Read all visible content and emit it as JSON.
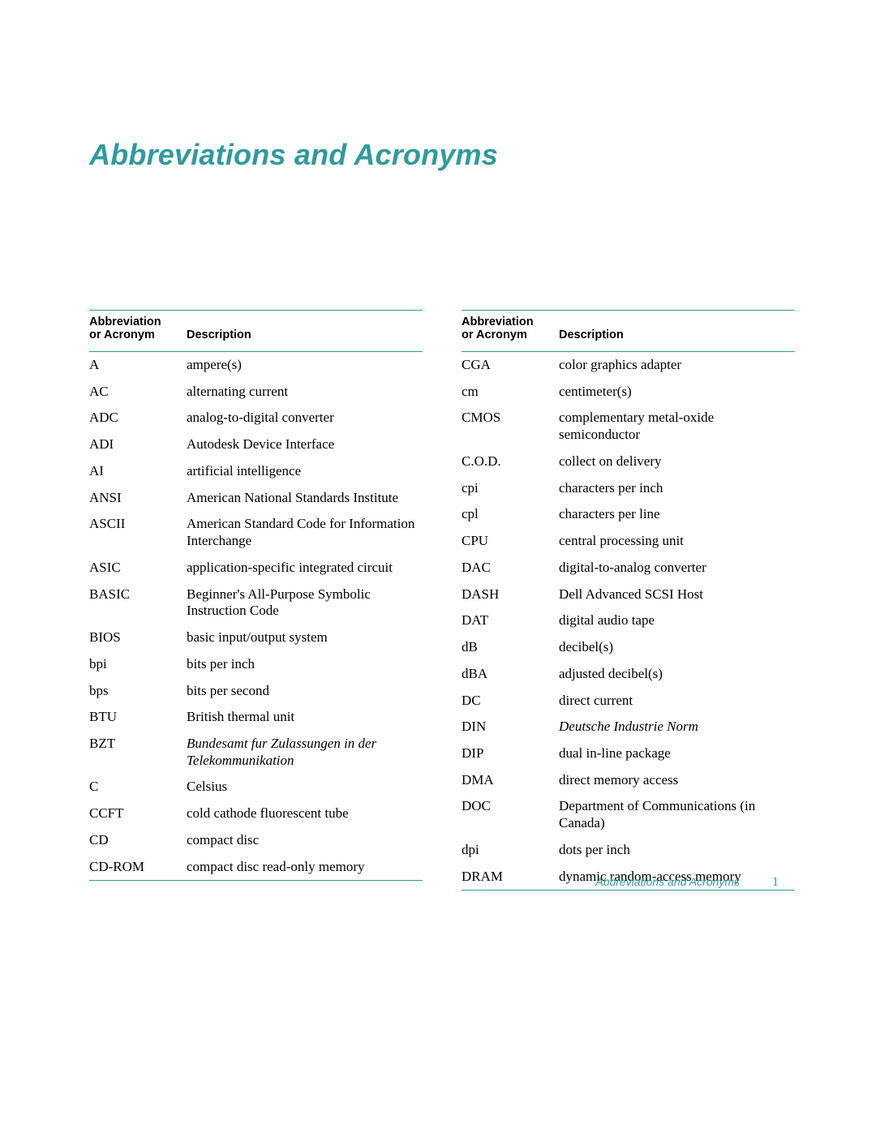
{
  "colors": {
    "accent": "#2f9b9b",
    "text": "#000000",
    "background": "#ffffff",
    "rule": "#2f9b9b"
  },
  "title": "Abbreviations and Acronyms",
  "headers": {
    "abbr_line1": "Abbreviation",
    "abbr_line2": "or Acronym",
    "desc": "Description"
  },
  "footer": {
    "label": "Abbreviations and Acronyms",
    "page": "1"
  },
  "left": [
    {
      "abbr": "A",
      "desc": "ampere(s)"
    },
    {
      "abbr": "AC",
      "desc": "alternating current"
    },
    {
      "abbr": "ADC",
      "desc": "analog-to-digital converter"
    },
    {
      "abbr": "ADI",
      "desc": "Autodesk Device Interface"
    },
    {
      "abbr": "AI",
      "desc": "artificial intelligence"
    },
    {
      "abbr": "ANSI",
      "desc": "American National Standards Institute"
    },
    {
      "abbr": "ASCII",
      "desc": "American Standard Code for Information Interchange"
    },
    {
      "abbr": "ASIC",
      "desc": "application-specific integrated circuit"
    },
    {
      "abbr": "BASIC",
      "desc": "Beginner's All-Purpose Symbolic Instruction Code"
    },
    {
      "abbr": "BIOS",
      "desc": "basic input/output system"
    },
    {
      "abbr": "bpi",
      "desc": "bits per inch"
    },
    {
      "abbr": "bps",
      "desc": "bits per second"
    },
    {
      "abbr": "BTU",
      "desc": "British thermal unit"
    },
    {
      "abbr": "BZT",
      "desc": "Bundesamt fur Zulassungen in der Telekommunikation",
      "italic": true
    },
    {
      "abbr": "C",
      "desc": "Celsius"
    },
    {
      "abbr": "CCFT",
      "desc": "cold cathode fluorescent tube"
    },
    {
      "abbr": "CD",
      "desc": "compact disc"
    },
    {
      "abbr": "CD-ROM",
      "desc": "compact disc read-only memory"
    }
  ],
  "right": [
    {
      "abbr": "CGA",
      "desc": "color graphics adapter"
    },
    {
      "abbr": "cm",
      "desc": "centimeter(s)"
    },
    {
      "abbr": "CMOS",
      "desc": "complementary metal-oxide semiconductor"
    },
    {
      "abbr": "C.O.D.",
      "desc": "collect on delivery"
    },
    {
      "abbr": "cpi",
      "desc": "characters per inch"
    },
    {
      "abbr": "cpl",
      "desc": "characters per line"
    },
    {
      "abbr": "CPU",
      "desc": "central processing unit"
    },
    {
      "abbr": "DAC",
      "desc": "digital-to-analog converter"
    },
    {
      "abbr": "DASH",
      "desc": "Dell Advanced SCSI Host"
    },
    {
      "abbr": "DAT",
      "desc": "digital audio tape"
    },
    {
      "abbr": "dB",
      "desc": "decibel(s)"
    },
    {
      "abbr": "dBA",
      "desc": "adjusted decibel(s)"
    },
    {
      "abbr": "DC",
      "desc": "direct current"
    },
    {
      "abbr": "DIN",
      "desc": "Deutsche Industrie Norm",
      "italic": true
    },
    {
      "abbr": "DIP",
      "desc": "dual in-line package"
    },
    {
      "abbr": "DMA",
      "desc": "direct memory access"
    },
    {
      "abbr": "DOC",
      "desc": "Department of Communications (in Canada)"
    },
    {
      "abbr": "dpi",
      "desc": "dots per inch"
    },
    {
      "abbr": "DRAM",
      "desc": "dynamic random-access memory"
    }
  ]
}
